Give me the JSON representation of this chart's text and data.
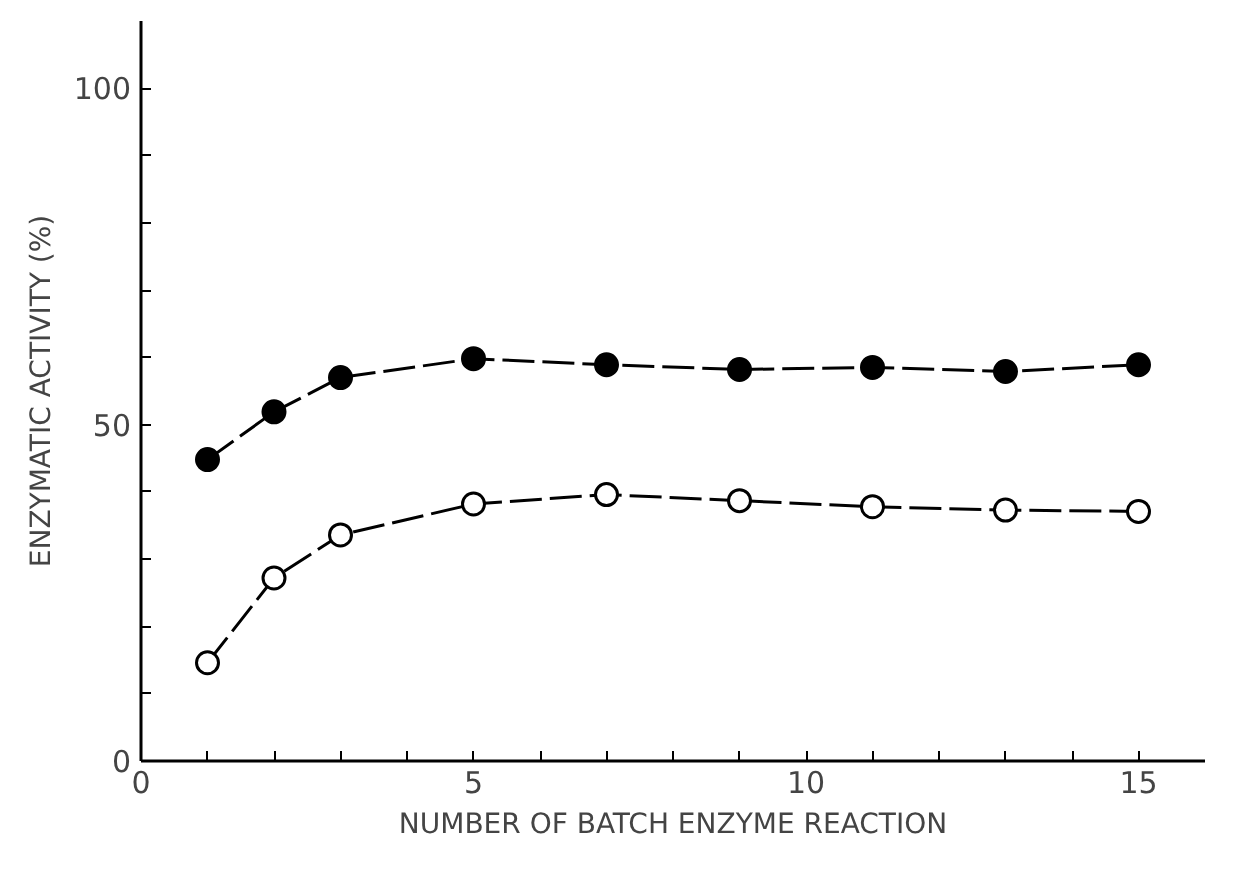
{
  "chart_data": {
    "type": "line",
    "xlabel": "NUMBER OF BATCH ENZYME REACTION",
    "ylabel": "ENZYMATIC ACTIVITY (%)",
    "x": [
      1,
      2,
      3,
      5,
      7,
      9,
      11,
      13,
      15
    ],
    "series": [
      {
        "color": "#000000",
        "values": [
          44.8,
          51.9,
          57.0,
          59.8,
          58.9,
          58.2,
          58.5,
          57.9,
          58.9
        ]
      },
      {
        "color": "#000000",
        "values": [
          14.6,
          27.2,
          33.6,
          38.2,
          39.6,
          38.7,
          37.8,
          37.3,
          37.1
        ]
      }
    ],
    "xlim": [
      0,
      16
    ],
    "ylim": [
      0,
      110
    ],
    "xticks": [
      0,
      {
        "value": 1,
        "label": null
      },
      {
        "value": 2,
        "label": null
      },
      {
        "value": 3,
        "label": null
      },
      {
        "value": 4,
        "label": null
      },
      5,
      {
        "value": 6,
        "label": null
      },
      {
        "value": 7,
        "label": null
      },
      {
        "value": 8,
        "label": null
      },
      {
        "value": 9,
        "label": null
      },
      10,
      {
        "value": 11,
        "label": null
      },
      {
        "value": 12,
        "label": null
      },
      {
        "value": 13,
        "label": null
      },
      {
        "value": 14,
        "label": null
      },
      15
    ],
    "yticks": [
      0,
      {
        "value": 10,
        "label": null
      },
      {
        "value": 20,
        "label": null
      },
      {
        "value": 30,
        "label": null
      },
      {
        "value": 40,
        "label": null
      },
      50,
      {
        "value": 60,
        "label": null
      },
      {
        "value": 70,
        "label": null
      },
      {
        "value": 80,
        "label": null
      },
      {
        "value": 90,
        "label": null
      },
      100
    ],
    "grid": false,
    "marker": "circle",
    "line_style": "dashed"
  }
}
